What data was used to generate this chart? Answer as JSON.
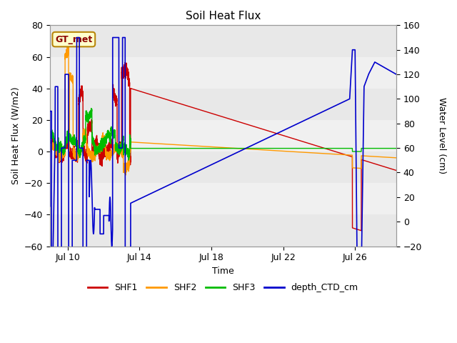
{
  "title": "Soil Heat Flux",
  "xlabel": "Time",
  "ylabel_left": "Soil Heat Flux (W/m2)",
  "ylabel_right": "Water Level (cm)",
  "xlim_days": [
    9.0,
    28.3
  ],
  "ylim_left": [
    -60,
    80
  ],
  "ylim_right": [
    -20,
    160
  ],
  "yticks_left": [
    -60,
    -40,
    -20,
    0,
    20,
    40,
    60,
    80
  ],
  "yticks_right": [
    -20,
    0,
    20,
    40,
    60,
    80,
    100,
    120,
    140,
    160
  ],
  "xtick_days": [
    10,
    14,
    18,
    22,
    26
  ],
  "xtick_labels": [
    "Jul 10",
    "Jul 14",
    "Jul 18",
    "Jul 22",
    "Jul 26"
  ],
  "background_color": "#ffffff",
  "annotation_text": "GT_met",
  "colors": {
    "SHF1": "#cc0000",
    "SHF2": "#ff9900",
    "SHF3": "#00bb00",
    "depth_CTD_cm": "#0000cc"
  },
  "band_colors": [
    "#e8e8e8",
    "#f0f0f0"
  ],
  "band_edges": [
    -60,
    -40,
    -20,
    0,
    20,
    40,
    60,
    80
  ]
}
